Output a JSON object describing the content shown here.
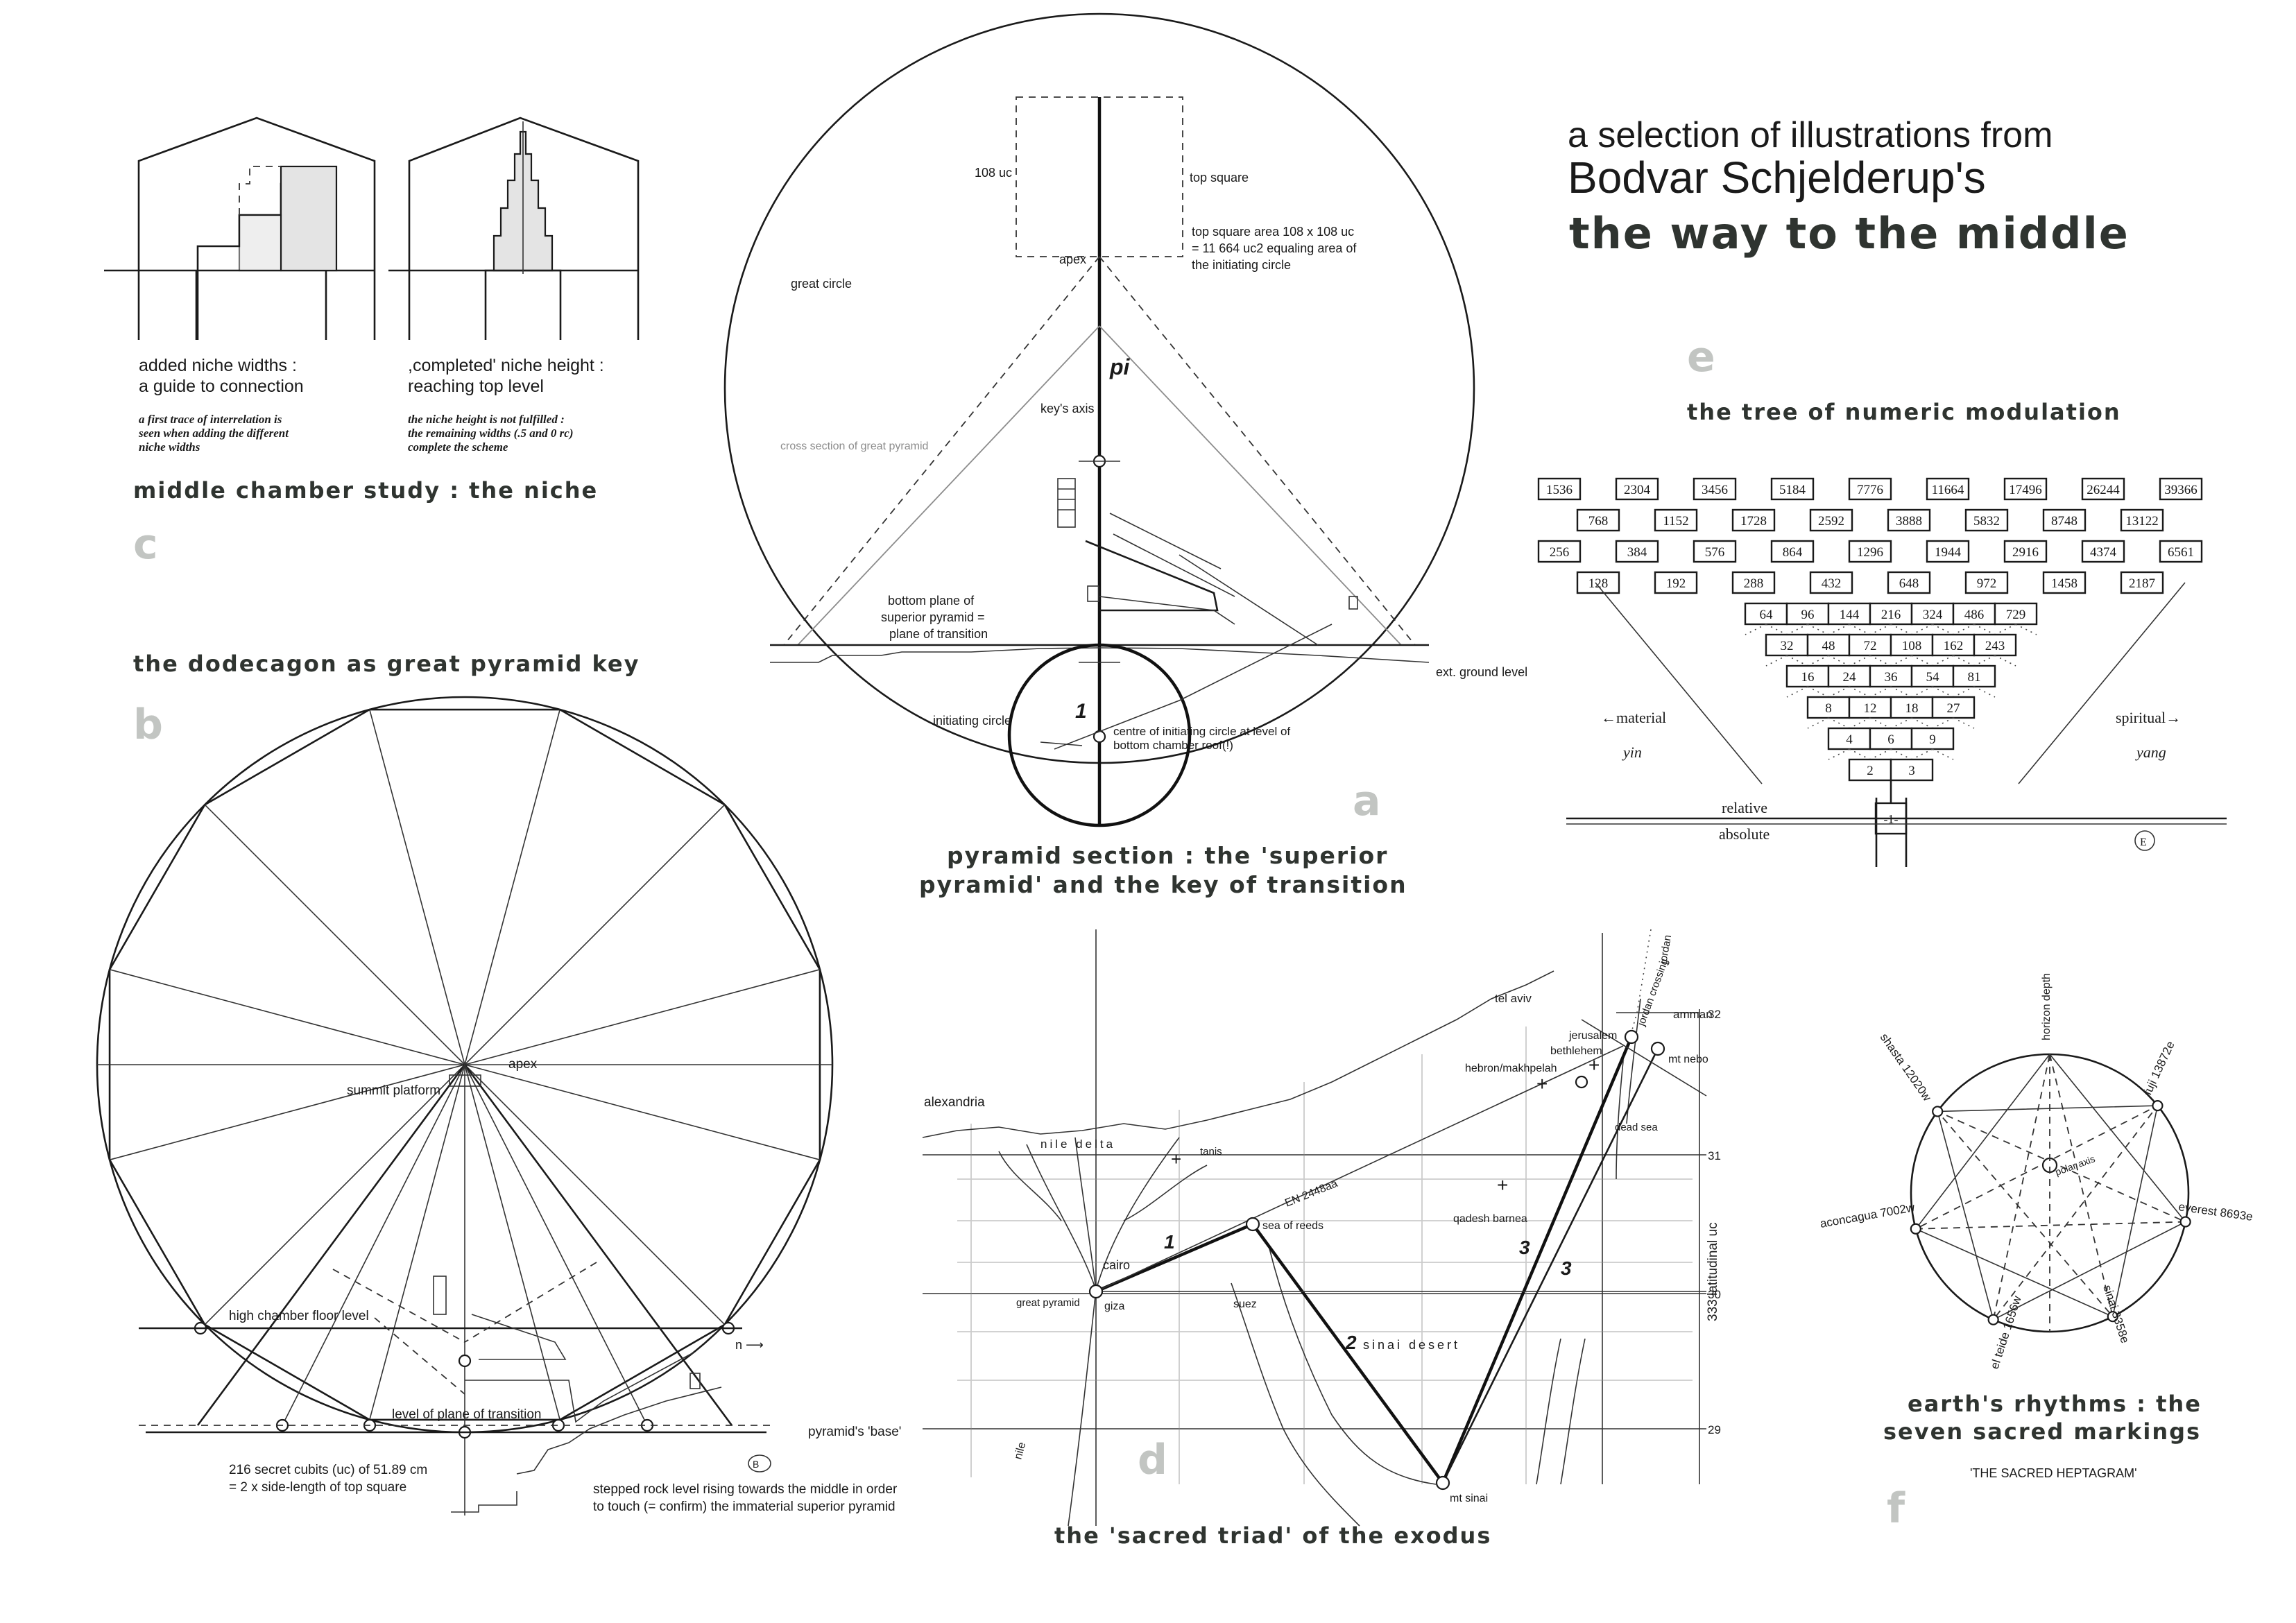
{
  "header": {
    "line1": "a selection of illustrations from",
    "line2": "Bodvar Schjelderup's",
    "line3": "the way to the middle"
  },
  "panel_c": {
    "letter": "c",
    "title": "middle chamber study : the niche",
    "cap1_a": "added niche widths :",
    "cap1_b": "a guide to connection",
    "cap2_a": ",completed' niche height :",
    "cap2_b": "reaching top level",
    "note1_a": "a first trace of interrelation is",
    "note1_b": "seen when adding the different",
    "note1_c": "niche widths",
    "note2_a": "the niche height is not fulfilled :",
    "note2_b": "the remaining widths (.5 and 0 rc)",
    "note2_c": "complete the scheme"
  },
  "panel_a": {
    "letter": "a",
    "title_a": "pyramid section : the 'superior",
    "title_b": "pyramid' and the key of transition",
    "label_108uc": "108 uc",
    "label_top_square": "top square",
    "area_a": "top square area 108 x 108 uc",
    "area_b": "= 11 664 uc2 equaling area of",
    "area_c": "the initiating circle",
    "label_apex": "apex",
    "label_great_circle": "great circle",
    "label_pi": "pi",
    "label_keys_axis": "key's axis",
    "label_cross_section": "cross section of great pyramid",
    "bottom_a": "bottom plane of",
    "bottom_b": "superior pyramid =",
    "bottom_c": "plane of transition",
    "label_ground": "ext. ground level",
    "label_one": "1",
    "label_init_circle": "initiating circle",
    "centre_a": "centre of initiating circle at level of",
    "centre_b": "bottom chamber roof(!)"
  },
  "panel_b": {
    "letter": "b",
    "title": "the dodecagon as great pyramid key",
    "label_apex": "apex",
    "label_summit": "summit platform",
    "label_high_chamber": "high chamber floor level",
    "label_transition": "level of plane of transition",
    "label_base": "pyramid's 'base'",
    "cubits_a": "216 secret cubits (uc) of 51.89 cm",
    "cubits_b": "= 2 x side-length of top square",
    "stepped_a": "stepped rock level rising towards the middle in order",
    "stepped_b": "to touch (= confirm) the immaterial superior pyramid",
    "mark_b": "B"
  },
  "panel_e": {
    "letter": "e",
    "title": "the tree of numeric modulation",
    "rows": [
      [
        "1536",
        "2304",
        "3456",
        "5184",
        "7776",
        "11664",
        "17496",
        "26244",
        "39366"
      ],
      [
        "768",
        "1152",
        "1728",
        "2592",
        "3888",
        "5832",
        "8748",
        "13122"
      ],
      [
        "256",
        "384",
        "576",
        "864",
        "1296",
        "1944",
        "2916",
        "4374",
        "6561"
      ],
      [
        "128",
        "192",
        "288",
        "432",
        "648",
        "972",
        "1458",
        "2187"
      ],
      [
        "64",
        "96",
        "144",
        "216",
        "324",
        "486",
        "729"
      ],
      [
        "32",
        "48",
        "72",
        "108",
        "162",
        "243"
      ],
      [
        "16",
        "24",
        "36",
        "54",
        "81"
      ],
      [
        "8",
        "12",
        "18",
        "27"
      ],
      [
        "4",
        "6",
        "9"
      ],
      [
        "2",
        "3"
      ],
      [
        "1"
      ]
    ],
    "root_label": "-1-",
    "label_material": "←material",
    "label_spiritual": "spiritual→",
    "label_yin": "yin",
    "label_yang": "yang",
    "label_relative": "relative",
    "label_absolute": "absolute",
    "mark_e": "E"
  },
  "panel_d": {
    "letter": "d",
    "title": "the 'sacred triad' of the exodus",
    "places": {
      "tel_aviv": "tel aviv",
      "jordan": "jordan",
      "jordan_crossing": "jordan crossing",
      "amman": "amman",
      "jerusalem": "jerusalem",
      "bethlehem": "bethlehem",
      "hebron": "hebron/makhpelah",
      "mt_nebo": "mt nebo",
      "alexandria": "alexandria",
      "nile_delta": "nile delta",
      "tanis": "tanis",
      "dead_sea": "dead sea",
      "sea_of_reeds": "sea of reeds",
      "en_2448aa": "EN 2448aa",
      "qadesh_barnea": "qadesh barnea",
      "cairo": "cairo",
      "great_pyramid": "great pyramid",
      "giza": "giza",
      "suez": "suez",
      "sinai_desert": "sinai desert",
      "nile": "nile",
      "mt_sinai": "mt sinai"
    },
    "latitudes": [
      "32",
      "31",
      "30",
      "29"
    ],
    "lat_axis": "333 latitudinal uc",
    "seg1": "1",
    "seg2": "2",
    "seg3a": "3",
    "seg3b": "3"
  },
  "panel_f": {
    "letter": "f",
    "title_a": "earth's rhythms : the",
    "title_b": "seven sacred markings",
    "subtitle": "'THE SACRED HEPTAGRAM'",
    "horizon": "horizon depth",
    "fuji": "fuji 13872e",
    "everest": "everest 8693e",
    "sinai": "sinai 3358e",
    "el_teide": "el teide 1656w",
    "aconcagua": "aconcagua 7002w",
    "shasta": "shasta 12020w",
    "polar_axis": "polar axis"
  }
}
